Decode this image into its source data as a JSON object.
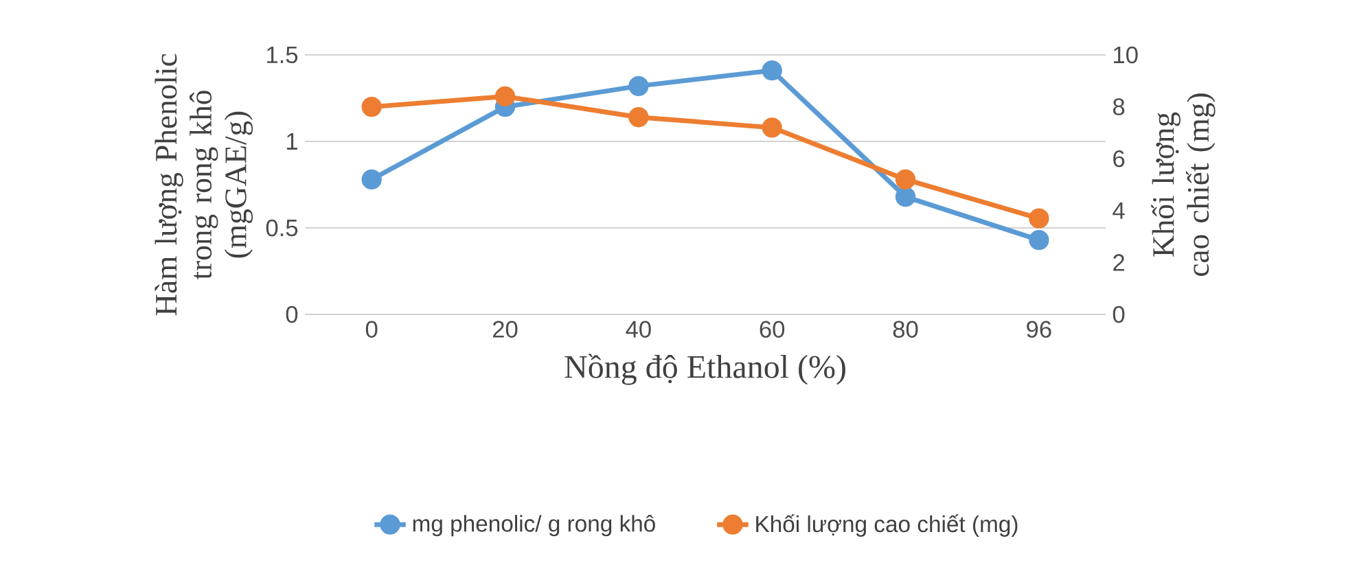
{
  "chart_data": {
    "type": "line",
    "xlabel": "Nồng độ Ethanol (%)",
    "ylabel": "Hàm lượng Phenolic trong rong khô (mgGAE/g)",
    "y2label": "Khối lượng cao chiết (mg)",
    "categories": [
      "0",
      "20",
      "40",
      "60",
      "80",
      "96"
    ],
    "series": [
      {
        "name": "mg phenolic/ g rong khô",
        "color": "#5b9bd5",
        "values": [
          0.78,
          1.2,
          1.32,
          1.41,
          0.68,
          0.43
        ]
      },
      {
        "name": "Khối lượng cao chiết (mg)",
        "color": "#ed7d31",
        "axis": "y2",
        "values": [
          8.0,
          8.4,
          7.6,
          7.2,
          5.2,
          3.7
        ]
      }
    ],
    "ylim": [
      0,
      1.5
    ],
    "yticks": [
      0,
      0.5,
      1,
      1.5
    ],
    "y2lim": [
      0,
      10
    ],
    "y2ticks": [
      0,
      2,
      4,
      6,
      8,
      10
    ],
    "grid": "y",
    "legend": "bottom",
    "marker": "circle",
    "line_style": "solid"
  }
}
